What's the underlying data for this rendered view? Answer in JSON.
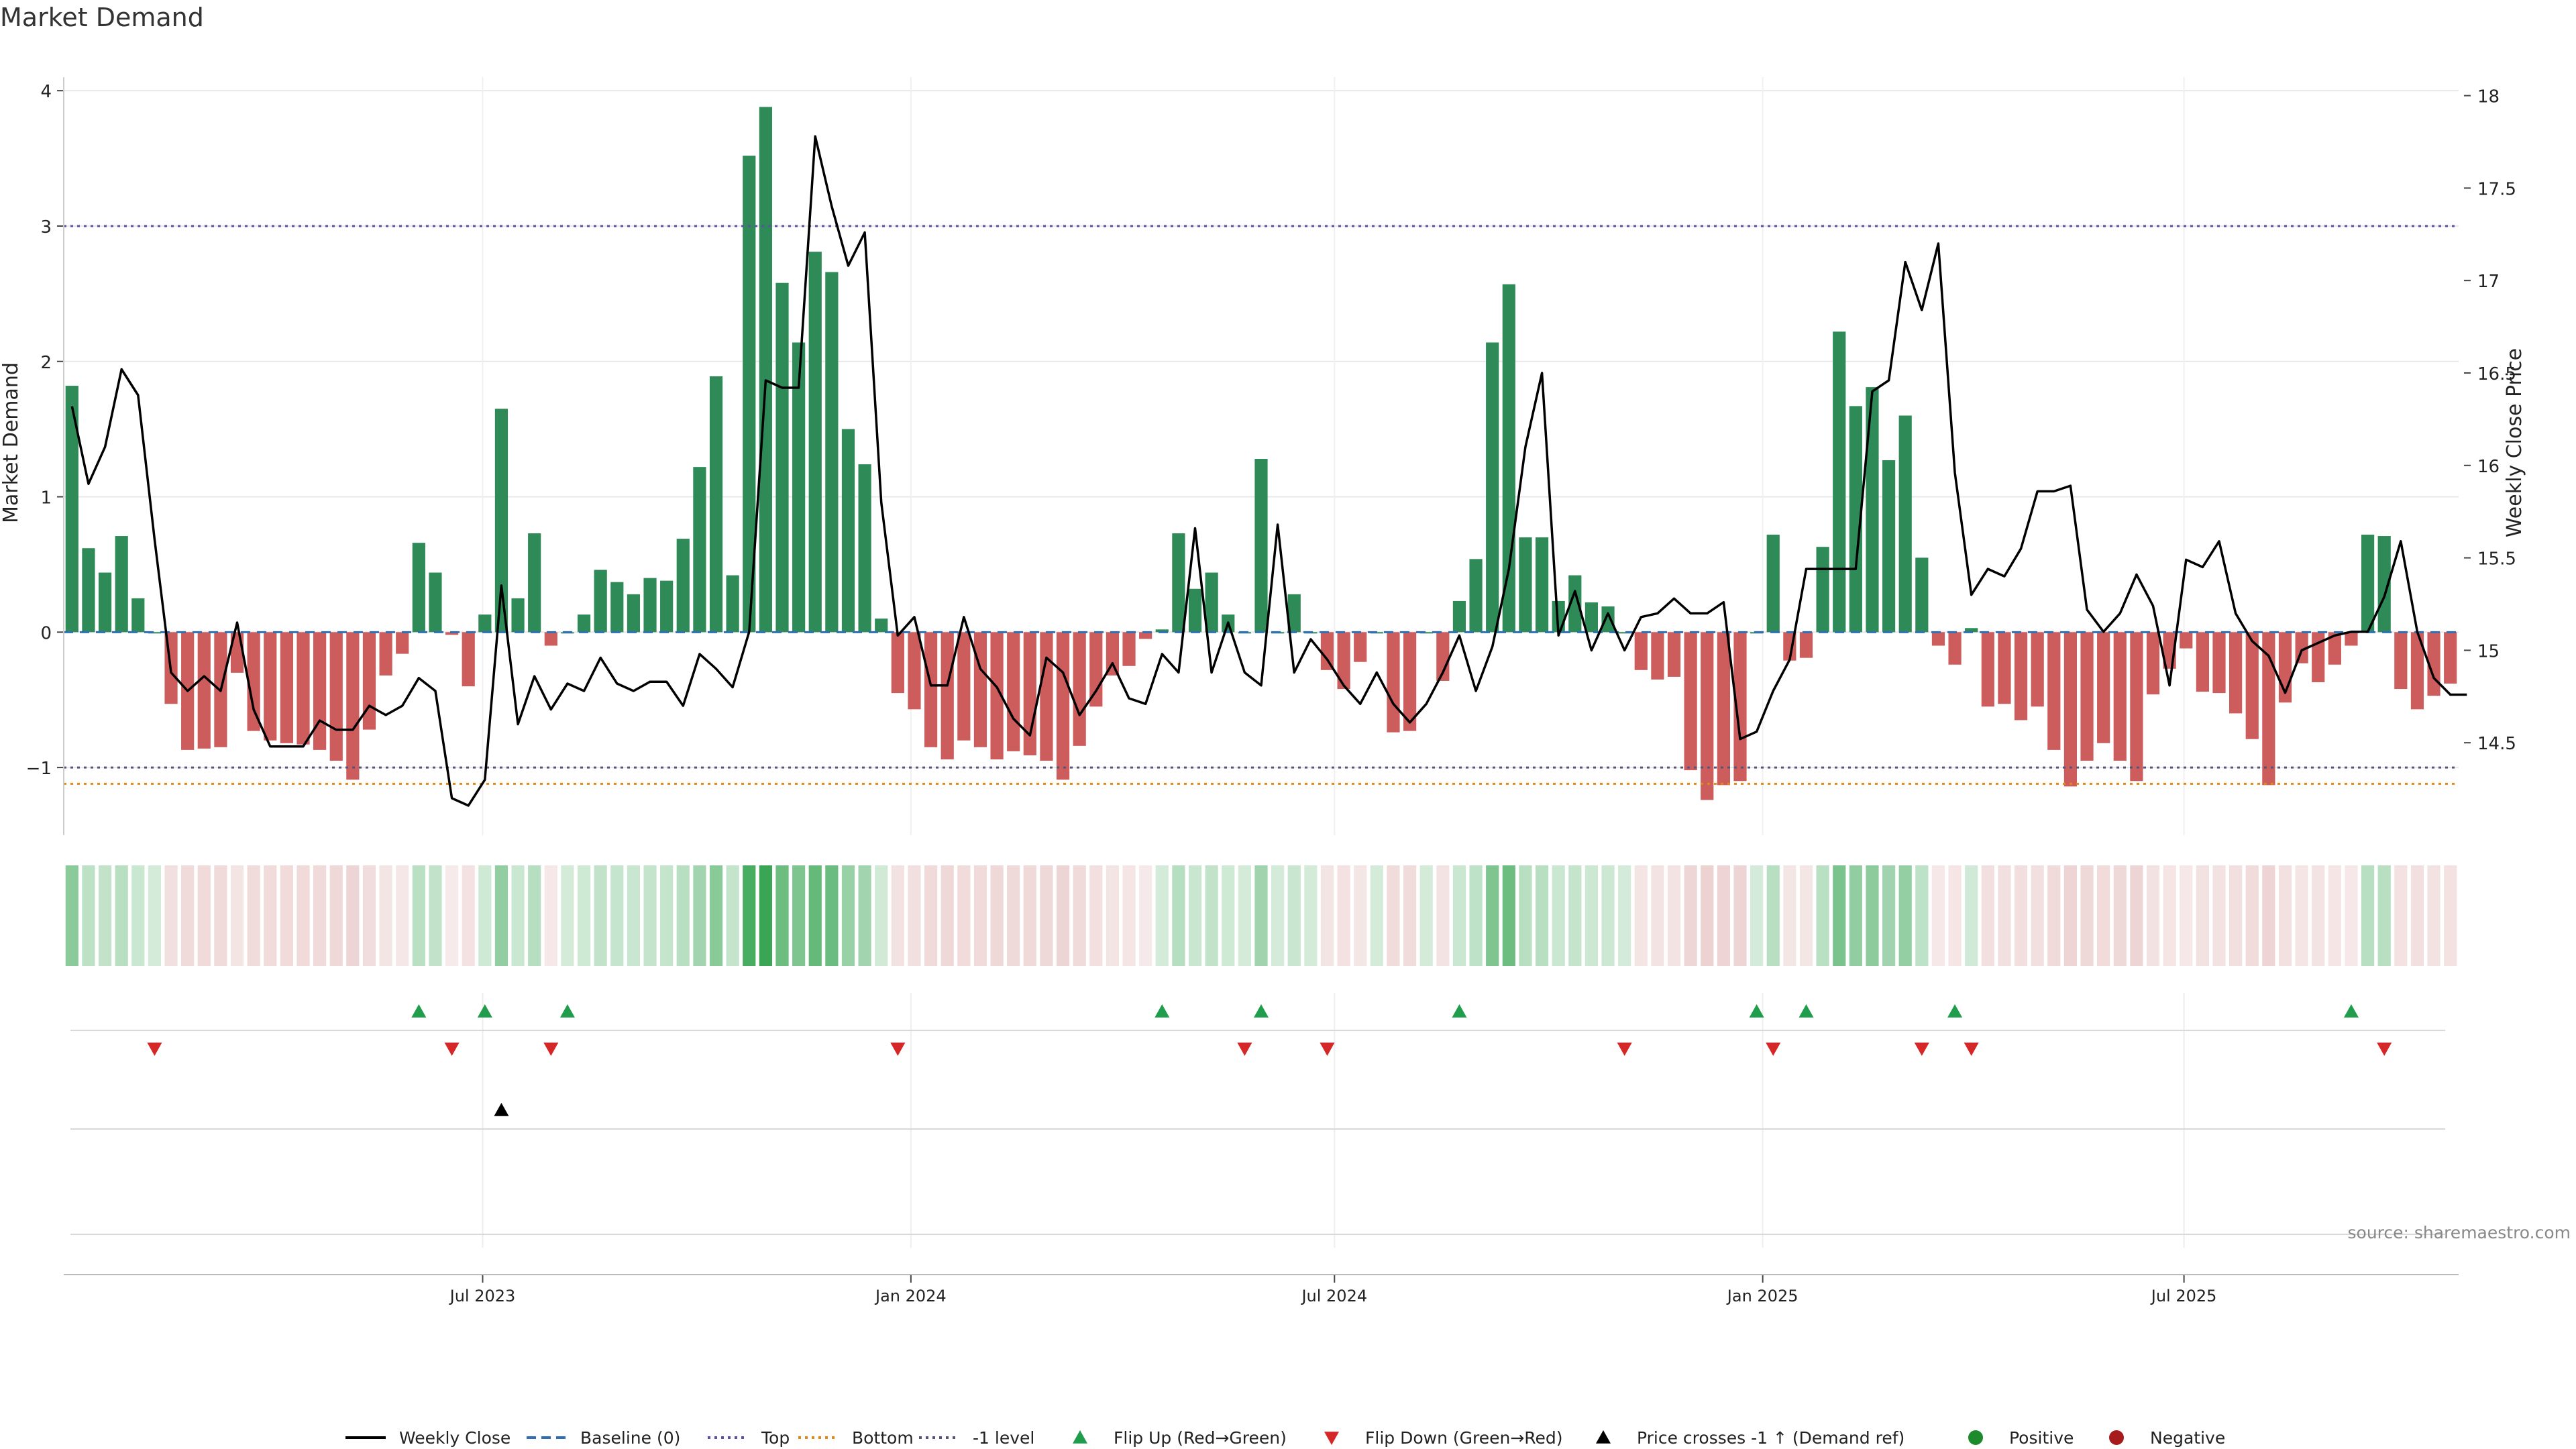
{
  "chart_data": {
    "type": "bar",
    "title": "Market Demand",
    "ylabel_left": "Market Demand",
    "ylabel_right": "Weekly Close Price",
    "source_text": "source: sharemaestro.com",
    "start_date": "2023-01-02",
    "end_date": "2025-10-27",
    "ylim_left": [
      -1.5,
      4.1
    ],
    "ylim_right": [
      14.0,
      18.1
    ],
    "left_ticks": [
      {
        "value": 4,
        "label": "4"
      },
      {
        "value": 3,
        "label": "3"
      },
      {
        "value": 2,
        "label": "2"
      },
      {
        "value": 1,
        "label": "1"
      },
      {
        "value": 0,
        "label": "0"
      },
      {
        "value": -1,
        "label": "−1"
      }
    ],
    "right_ticks": [
      {
        "value": 18,
        "label": "18"
      },
      {
        "value": 17.5,
        "label": "17.5"
      },
      {
        "value": 17,
        "label": "17"
      },
      {
        "value": 16.5,
        "label": "16.5"
      },
      {
        "value": 16,
        "label": "16"
      },
      {
        "value": 15.5,
        "label": "15.5"
      },
      {
        "value": 15,
        "label": "15"
      },
      {
        "value": 14.5,
        "label": "14.5"
      }
    ],
    "x_ticks": [
      {
        "label": "Jul 2023",
        "date": "2023-07-01"
      },
      {
        "label": "Jan 2024",
        "date": "2024-01-01"
      },
      {
        "label": "Jul 2024",
        "date": "2024-07-01"
      },
      {
        "label": "Jan 2025",
        "date": "2025-01-01"
      },
      {
        "label": "Jul 2025",
        "date": "2025-07-01"
      }
    ],
    "reference_lines": {
      "top": 3.0,
      "bottom": -1.12,
      "minus_one": -1.0,
      "baseline": 0
    },
    "demand": [
      1.82,
      0.62,
      0.44,
      0.71,
      0.25,
      0.0,
      -0.53,
      -0.87,
      -0.86,
      -0.85,
      -0.3,
      -0.73,
      -0.8,
      -0.82,
      -0.83,
      -0.87,
      -0.95,
      -1.09,
      -0.72,
      -0.32,
      -0.16,
      0.66,
      0.44,
      -0.02,
      -0.4,
      0.13,
      1.65,
      0.25,
      0.73,
      -0.1,
      0.0,
      0.13,
      0.46,
      0.37,
      0.28,
      0.4,
      0.38,
      0.69,
      1.22,
      1.89,
      0.42,
      3.52,
      3.88,
      2.58,
      2.14,
      2.81,
      2.66,
      1.5,
      1.24,
      0.1,
      -0.45,
      -0.57,
      -0.85,
      -0.94,
      -0.8,
      -0.85,
      -0.94,
      -0.88,
      -0.91,
      -0.95,
      -1.09,
      -0.84,
      -0.55,
      -0.32,
      -0.25,
      -0.05,
      0.02,
      0.73,
      0.32,
      0.44,
      0.13,
      0.0,
      1.28,
      0.0,
      0.28,
      0.0,
      -0.28,
      -0.42,
      -0.22,
      0.0,
      -0.74,
      -0.73,
      0.0,
      -0.36,
      0.23,
      0.54,
      2.14,
      2.57,
      0.7,
      0.7,
      0.23,
      0.42,
      0.22,
      0.19,
      0.0,
      -0.28,
      -0.35,
      -0.33,
      -1.02,
      -1.24,
      -1.13,
      -1.1,
      0.0,
      0.72,
      -0.21,
      -0.19,
      0.63,
      2.22,
      1.67,
      1.81,
      1.27,
      1.6,
      0.55,
      -0.1,
      -0.24,
      0.03,
      -0.55,
      -0.53,
      -0.65,
      -0.55,
      -0.87,
      -1.14,
      -0.95,
      -0.82,
      -0.95,
      -1.1,
      -0.46,
      -0.27,
      -0.12,
      -0.44,
      -0.45,
      -0.6,
      -0.79,
      -1.13,
      -0.52,
      -0.23,
      -0.37,
      -0.24,
      -0.1,
      0.72,
      0.71,
      -0.42,
      -0.57,
      -0.47,
      -0.38
    ],
    "price": [
      16.32,
      15.9,
      16.1,
      16.52,
      16.38,
      15.6,
      14.88,
      14.78,
      14.86,
      14.78,
      15.15,
      14.68,
      14.48,
      14.48,
      14.48,
      14.62,
      14.57,
      14.57,
      14.7,
      14.65,
      14.7,
      14.85,
      14.78,
      14.2,
      14.16,
      14.3,
      15.35,
      14.6,
      14.86,
      14.68,
      14.82,
      14.78,
      14.96,
      14.82,
      14.78,
      14.83,
      14.83,
      14.7,
      14.98,
      14.9,
      14.8,
      15.1,
      16.46,
      16.42,
      16.42,
      17.78,
      17.4,
      17.08,
      17.26,
      15.8,
      15.08,
      15.18,
      14.81,
      14.81,
      15.18,
      14.9,
      14.8,
      14.63,
      14.54,
      14.96,
      14.88,
      14.65,
      14.78,
      14.93,
      14.74,
      14.71,
      14.98,
      14.88,
      15.66,
      14.88,
      15.15,
      14.88,
      14.81,
      15.68,
      14.88,
      15.06,
      14.95,
      14.81,
      14.71,
      14.88,
      14.71,
      14.61,
      14.71,
      14.88,
      15.08,
      14.78,
      15.02,
      15.44,
      16.1,
      16.5,
      15.08,
      15.32,
      15.0,
      15.2,
      15.0,
      15.18,
      15.2,
      15.28,
      15.2,
      15.2,
      15.26,
      14.52,
      14.56,
      14.78,
      14.95,
      15.44,
      15.44,
      15.44,
      15.44,
      16.4,
      16.46,
      17.1,
      16.84,
      17.2,
      15.96,
      15.3,
      15.44,
      15.4,
      15.55,
      15.86,
      15.86,
      15.89,
      15.22,
      15.1,
      15.2,
      15.41,
      15.24,
      14.81,
      15.49,
      15.45,
      15.59,
      15.2,
      15.05,
      14.97,
      14.77,
      15.0,
      15.04,
      15.08,
      15.1,
      15.1,
      15.29,
      15.59,
      15.1,
      14.85,
      14.76,
      14.76
    ],
    "flip_up_weeks": [
      21,
      25,
      30,
      66,
      72,
      84,
      102,
      105,
      114,
      138
    ],
    "flip_down_weeks": [
      5,
      23,
      29,
      50,
      71,
      76,
      94,
      103,
      112,
      115,
      140
    ],
    "price_cross_weeks": [
      26
    ],
    "legend": [
      {
        "label": "Weekly Close",
        "kind": "line",
        "color": "#000000"
      },
      {
        "label": "Baseline (0)",
        "kind": "dash",
        "color": "#2f6fb5"
      },
      {
        "label": "Top",
        "kind": "dot",
        "color": "#5b4fa8"
      },
      {
        "label": "Bottom",
        "kind": "dot",
        "color": "#e08a14"
      },
      {
        "label": "-1 level",
        "kind": "dot",
        "color": "#555577"
      },
      {
        "label": "Flip Up (Red→Green)",
        "kind": "tri-up",
        "color": "#1f9d4c"
      },
      {
        "label": "Flip Down (Green→Red)",
        "kind": "tri-down",
        "color": "#d62728"
      },
      {
        "label": "Price crosses -1 ↑ (Demand ref)",
        "kind": "tri-up",
        "color": "#000000"
      },
      {
        "label": "Positive",
        "kind": "circle",
        "color": "#1e8a2e"
      },
      {
        "label": "Negative",
        "kind": "circle",
        "color": "#a61c1c"
      }
    ],
    "colors": {
      "positive_bar": "#2e8b57",
      "negative_bar": "#cd5c5c",
      "price_line": "#000000",
      "grid": "#e8e8e8",
      "heat_positive": "#3aa655",
      "heat_negative": "#d9a0a0"
    }
  }
}
